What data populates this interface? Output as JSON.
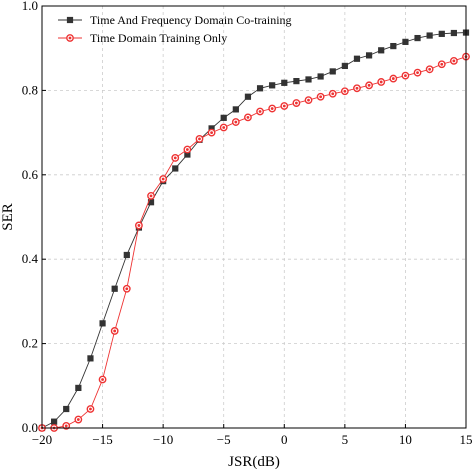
{
  "chart_data": {
    "type": "line",
    "xlabel": "JSR(dB)",
    "ylabel": "SER",
    "xlim": [
      -20,
      15
    ],
    "ylim": [
      0,
      1.0
    ],
    "xticks": [
      -20,
      -15,
      -10,
      -5,
      0,
      5,
      10,
      15
    ],
    "yticks": [
      0,
      0.2,
      0.4,
      0.6,
      0.8,
      1.0
    ],
    "xtick_labels": [
      "−20",
      "−15",
      "−10",
      "−5",
      "0",
      "5",
      "10",
      "15"
    ],
    "ytick_labels": [
      "0.0",
      "0.2",
      "0.4",
      "0.6",
      "0.8",
      "1.0"
    ],
    "grid": true,
    "legend_position": "top-left",
    "x": [
      -20,
      -19,
      -18,
      -17,
      -16,
      -15,
      -14,
      -13,
      -12,
      -11,
      -10,
      -9,
      -8,
      -7,
      -6,
      -5,
      -4,
      -3,
      -2,
      -1,
      0,
      1,
      2,
      3,
      4,
      5,
      6,
      7,
      8,
      9,
      10,
      11,
      12,
      13,
      14,
      15
    ],
    "series": [
      {
        "name": "Time And Frequency Domain Co-training",
        "color": "#333333",
        "marker": "square",
        "values": [
          0.0,
          0.015,
          0.045,
          0.095,
          0.165,
          0.248,
          0.33,
          0.41,
          0.475,
          0.535,
          0.585,
          0.615,
          0.648,
          0.683,
          0.71,
          0.735,
          0.755,
          0.785,
          0.805,
          0.812,
          0.818,
          0.822,
          0.826,
          0.833,
          0.845,
          0.858,
          0.875,
          0.883,
          0.895,
          0.905,
          0.915,
          0.924,
          0.93,
          0.934,
          0.936,
          0.937
        ]
      },
      {
        "name": "Time Domain Training Only",
        "color": "#ee3333",
        "marker": "circle",
        "values": [
          0.0,
          0.0,
          0.005,
          0.02,
          0.045,
          0.115,
          0.23,
          0.33,
          0.48,
          0.55,
          0.59,
          0.64,
          0.66,
          0.685,
          0.7,
          0.712,
          0.725,
          0.736,
          0.75,
          0.757,
          0.763,
          0.77,
          0.777,
          0.785,
          0.792,
          0.798,
          0.805,
          0.812,
          0.82,
          0.828,
          0.835,
          0.842,
          0.85,
          0.862,
          0.87,
          0.88
        ]
      }
    ]
  }
}
